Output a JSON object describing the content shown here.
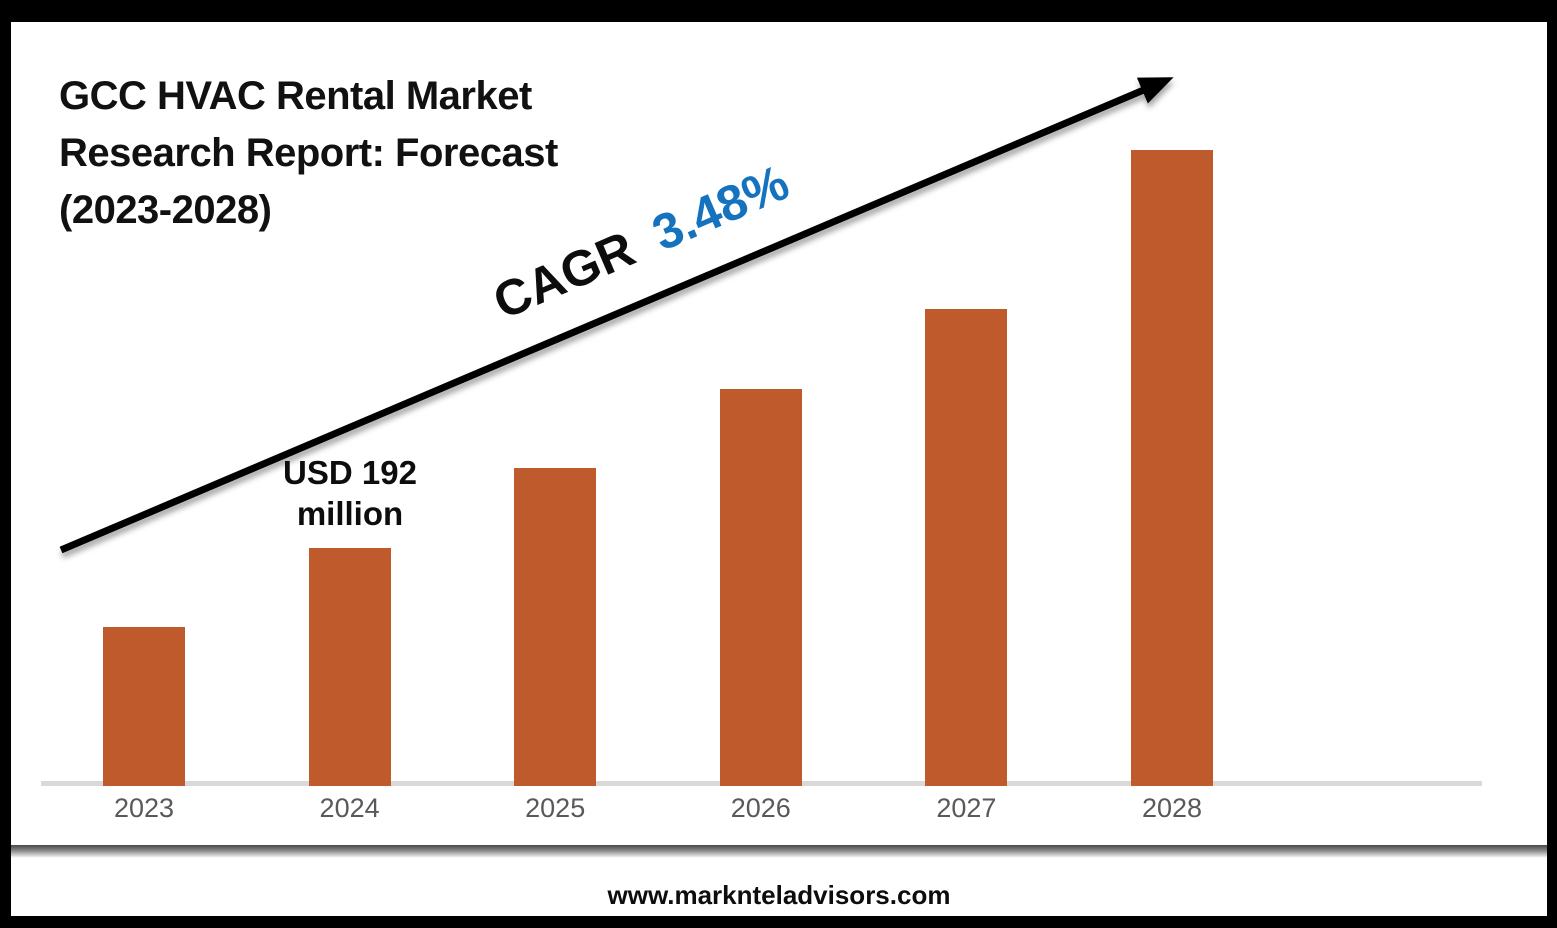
{
  "page": {
    "frame_color": "#000000",
    "background_color": "#ffffff"
  },
  "title": {
    "text": "GCC HVAC Rental Market Research Report: Forecast (2023-2028)",
    "lines": [
      "GCC HVAC Rental Market",
      "Research Report: Forecast",
      "(2023-2028)"
    ]
  },
  "annotations": {
    "cagr_label": "CAGR",
    "cagr_value": "3.48%",
    "cagr_value_color": "#1472BE",
    "usd_label_line1": "USD 192",
    "usd_label_line2": "million"
  },
  "footer": {
    "website": "www.marknteladvisors.com"
  },
  "chart_data": {
    "type": "bar",
    "title": "GCC HVAC Rental Market Research Report: Forecast (2023-2028)",
    "categories": [
      "2023",
      "2024",
      "2025",
      "2026",
      "2027",
      "2028"
    ],
    "values": [
      128,
      192,
      256,
      320,
      384,
      512
    ],
    "value_unit": "USD million",
    "relative_heights_pct": [
      25,
      37.5,
      50,
      62.5,
      75,
      100
    ],
    "labeled_point": {
      "category": "2024",
      "label": "USD 192 million",
      "value": 192
    },
    "cagr_pct": 3.48,
    "bar_color": "#BE5A2B",
    "axis_line_color": "#D9D9D9",
    "tick_label_color": "#595959",
    "trend_arrow": "rising-left-to-right",
    "xlabel": "",
    "ylabel": "",
    "grid": false,
    "legend": false
  }
}
